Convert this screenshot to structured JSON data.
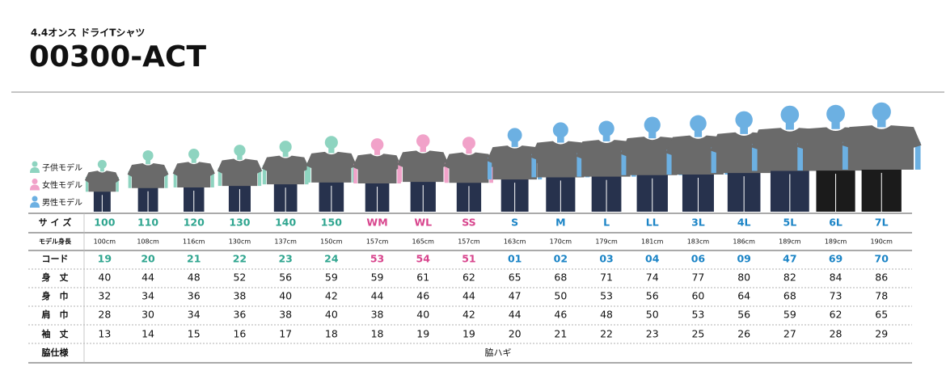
{
  "header": {
    "subtitle": "4.4オンス ドライTシャツ",
    "title": "00300-ACT"
  },
  "legend": [
    "子供モデル",
    "女性モデル",
    "男性モデル"
  ],
  "table": {
    "rows": [
      {
        "label": "サ イ ズ",
        "cells": [
          "100",
          "110",
          "120",
          "130",
          "140",
          "150",
          "WM",
          "WL",
          "SS",
          "S",
          "M",
          "L",
          "LL",
          "3L",
          "4L",
          "5L",
          "6L",
          "7L"
        ]
      },
      {
        "label": "モデル身長",
        "cells": [
          "100cm",
          "108cm",
          "116cm",
          "130cm",
          "137cm",
          "150cm",
          "157cm",
          "165cm",
          "157cm",
          "163cm",
          "170cm",
          "179cm",
          "181cm",
          "183cm",
          "186cm",
          "189cm",
          "189cm",
          "190cm"
        ]
      },
      {
        "label": "コード",
        "cells": [
          "19",
          "20",
          "21",
          "22",
          "23",
          "24",
          "53",
          "54",
          "51",
          "01",
          "02",
          "03",
          "04",
          "06",
          "09",
          "47",
          "69",
          "70"
        ]
      },
      {
        "label": "身　丈",
        "cells": [
          40,
          44,
          48,
          52,
          56,
          59,
          59,
          61,
          62,
          65,
          68,
          71,
          74,
          77,
          80,
          82,
          84,
          86
        ]
      },
      {
        "label": "身　巾",
        "cells": [
          32,
          34,
          36,
          38,
          40,
          42,
          44,
          46,
          44,
          47,
          50,
          53,
          56,
          60,
          64,
          68,
          73,
          78
        ]
      },
      {
        "label": "肩　巾",
        "cells": [
          28,
          30,
          34,
          36,
          38,
          40,
          38,
          40,
          42,
          44,
          46,
          48,
          50,
          53,
          56,
          59,
          62,
          65
        ]
      },
      {
        "label": "袖　丈",
        "cells": [
          13,
          14,
          15,
          16,
          17,
          18,
          18,
          19,
          19,
          20,
          21,
          22,
          23,
          25,
          26,
          27,
          28,
          29
        ]
      },
      {
        "label": "脇仕様",
        "cells": [
          "脇ハギ"
        ]
      }
    ]
  }
}
